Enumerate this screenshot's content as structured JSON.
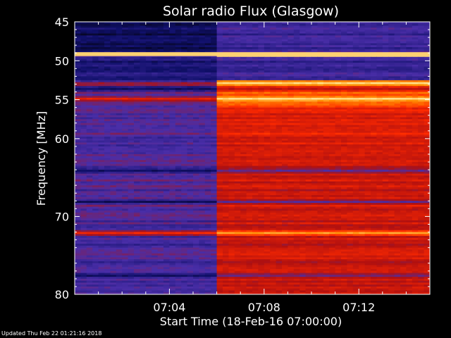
{
  "chart_data": {
    "type": "heatmap",
    "title": "Solar radio Flux (Glasgow)",
    "xlabel": "Start Time (18-Feb-16 07:00:00)",
    "ylabel": "Frequency [MHz]",
    "y_unit_bracket_left": "[",
    "y_unit_bracket_right": "]",
    "xlim_minutes": [
      0,
      15
    ],
    "ylim_mhz": [
      45,
      80
    ],
    "y_scale": "linear",
    "y_inverted": true,
    "x_ticks": [
      {
        "minute": 4,
        "label": "07:04"
      },
      {
        "minute": 8,
        "label": "07:08"
      },
      {
        "minute": 12,
        "label": "07:12"
      }
    ],
    "y_ticks": [
      {
        "mhz": 45,
        "label": "45"
      },
      {
        "mhz": 50,
        "label": "50"
      },
      {
        "mhz": 55,
        "label": "55"
      },
      {
        "mhz": 60,
        "label": "60"
      },
      {
        "mhz": 70,
        "label": "70"
      },
      {
        "mhz": 80,
        "label": "80"
      }
    ],
    "intensity_transition_minute": 5.9,
    "bright_bands_mhz": [
      49,
      52.8,
      54.8,
      72
    ],
    "dark_bands_mhz": [
      53.5,
      64,
      68,
      77.5
    ],
    "colormap": [
      "#000000",
      "#10106a",
      "#4a2ea8",
      "#b01010",
      "#ff2a00",
      "#ff8c00",
      "#ffe08a"
    ],
    "grid": false,
    "legend": "none"
  },
  "footer": {
    "updated_text": "Updated Thu Feb 22 01:21:16 2018"
  }
}
